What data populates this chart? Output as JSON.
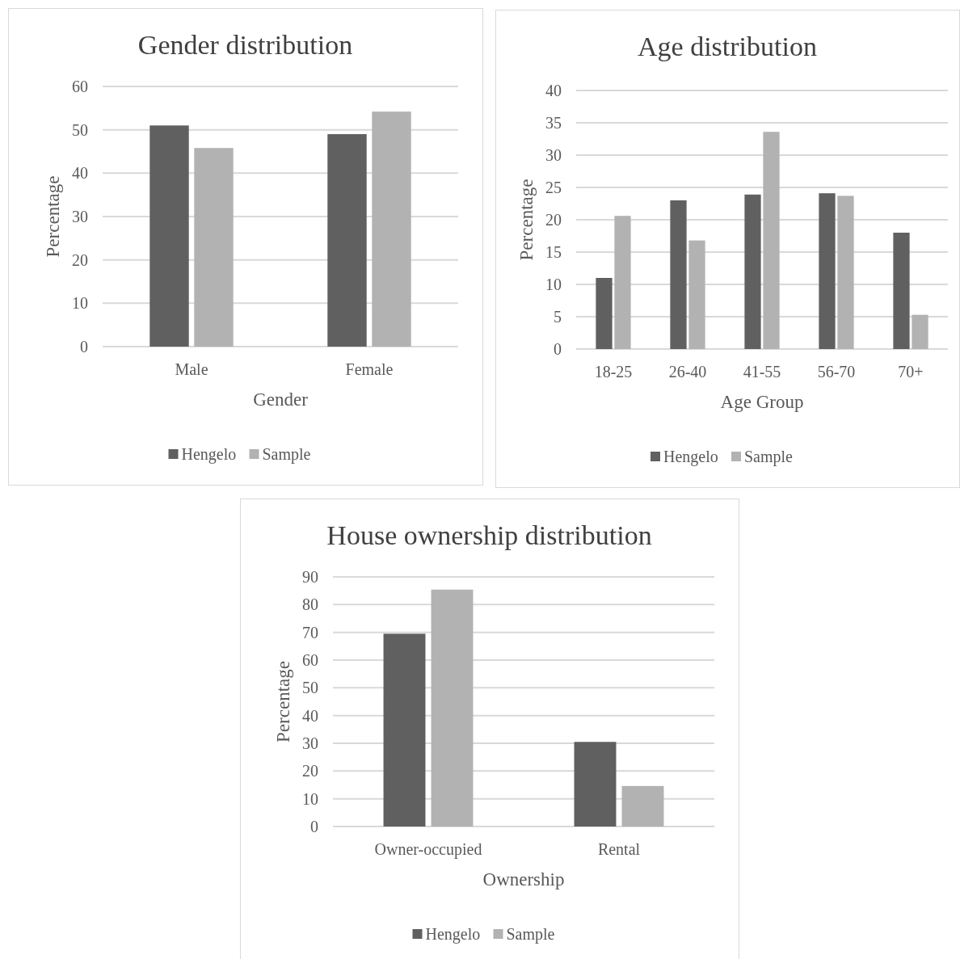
{
  "chart_data": [
    {
      "type": "bar",
      "title": "Gender distribution",
      "xlabel": "Gender",
      "ylabel": "Percentage",
      "categories": [
        "Male",
        "Female"
      ],
      "series": [
        {
          "name": "Hengelo",
          "color": "#606060",
          "values": [
            51,
            49
          ]
        },
        {
          "name": "Sample",
          "color": "#b2b2b2",
          "values": [
            45.8,
            54.2
          ]
        }
      ],
      "ylim": [
        0,
        60
      ],
      "yticks": [
        0,
        10,
        20,
        30,
        40,
        50,
        60
      ],
      "grid": "y",
      "legend": "bottom"
    },
    {
      "type": "bar",
      "title": "Age distribution",
      "xlabel": "Age Group",
      "ylabel": "Percentage",
      "categories": [
        "18-25",
        "26-40",
        "41-55",
        "56-70",
        "70+"
      ],
      "series": [
        {
          "name": "Hengelo",
          "color": "#606060",
          "values": [
            11,
            23,
            23.9,
            24.1,
            18
          ]
        },
        {
          "name": "Sample",
          "color": "#b2b2b2",
          "values": [
            20.6,
            16.8,
            33.6,
            23.7,
            5.3
          ]
        }
      ],
      "ylim": [
        0,
        40
      ],
      "yticks": [
        0,
        5,
        10,
        15,
        20,
        25,
        30,
        35,
        40
      ],
      "grid": "y",
      "legend": "bottom"
    },
    {
      "type": "bar",
      "title": "House ownership distribution",
      "xlabel": "Ownership",
      "ylabel": "Percentage",
      "categories": [
        "Owner-occupied",
        "Rental"
      ],
      "series": [
        {
          "name": "Hengelo",
          "color": "#606060",
          "values": [
            69.5,
            30.5
          ]
        },
        {
          "name": "Sample",
          "color": "#b2b2b2",
          "values": [
            85.4,
            14.6
          ]
        }
      ],
      "ylim": [
        0,
        90
      ],
      "yticks": [
        0,
        10,
        20,
        30,
        40,
        50,
        60,
        70,
        80,
        90
      ],
      "grid": "y",
      "legend": "bottom"
    }
  ]
}
